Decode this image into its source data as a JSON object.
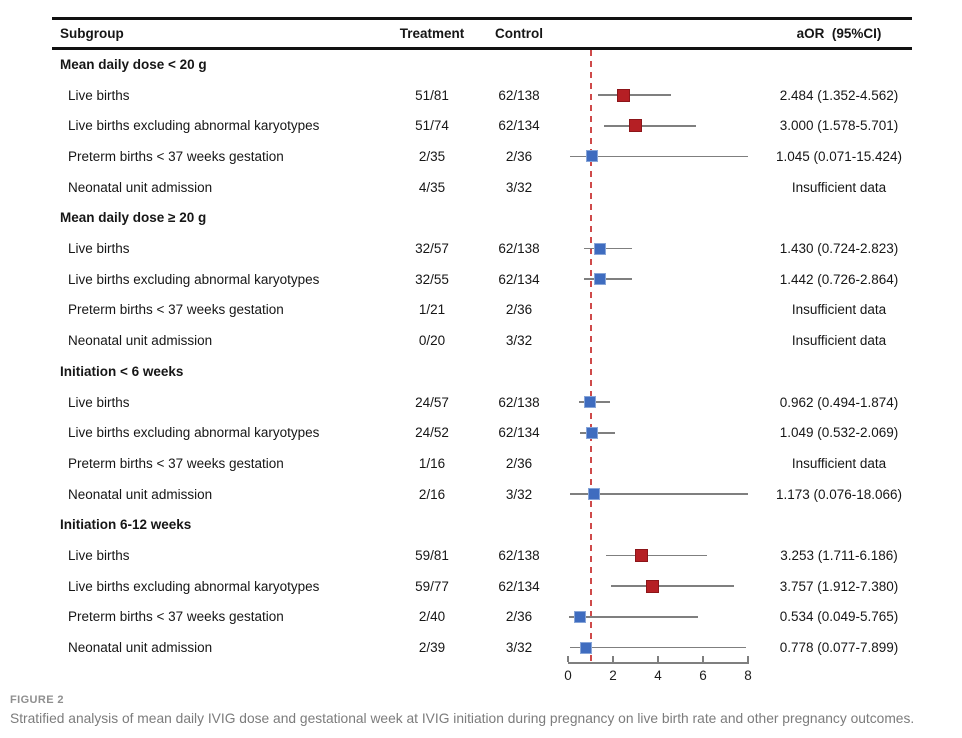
{
  "chart_data": {
    "type": "scatter",
    "subtype": "forest-plot",
    "columns": {
      "subgroup": "Subgroup",
      "treatment": "Treatment",
      "control": "Control",
      "aor": "aOR  (95%CI)"
    },
    "axis": {
      "min": 0,
      "max": 8,
      "ticks": [
        0,
        2,
        4,
        6,
        8
      ],
      "reference_line": 1,
      "grid": false
    },
    "groups": [
      {
        "label": "Mean daily dose < 20 g",
        "rows": [
          {
            "label": "Live births",
            "treatment": "51/81",
            "control": "62/138",
            "aor": 2.484,
            "ci_low": 1.352,
            "ci_high": 4.562,
            "aor_text": "2.484 (1.352-4.562)",
            "significant": true
          },
          {
            "label": "Live births excluding abnormal karyotypes",
            "treatment": "51/74",
            "control": "62/134",
            "aor": 3.0,
            "ci_low": 1.578,
            "ci_high": 5.701,
            "aor_text": "3.000 (1.578-5.701)",
            "significant": true
          },
          {
            "label": "Preterm births < 37 weeks gestation",
            "treatment": "2/35",
            "control": "2/36",
            "aor": 1.045,
            "ci_low": 0.071,
            "ci_high": 15.424,
            "aor_text": "1.045 (0.071-15.424)",
            "significant": false
          },
          {
            "label": "Neonatal unit admission",
            "treatment": "4/35",
            "control": "3/32",
            "aor": null,
            "ci_low": null,
            "ci_high": null,
            "aor_text": "Insufficient data",
            "significant": false
          }
        ]
      },
      {
        "label": "Mean daily dose ≥ 20 g",
        "rows": [
          {
            "label": "Live births",
            "treatment": "32/57",
            "control": "62/138",
            "aor": 1.43,
            "ci_low": 0.724,
            "ci_high": 2.823,
            "aor_text": "1.430 (0.724-2.823)",
            "significant": false
          },
          {
            "label": "Live births excluding abnormal karyotypes",
            "treatment": "32/55",
            "control": "62/134",
            "aor": 1.442,
            "ci_low": 0.726,
            "ci_high": 2.864,
            "aor_text": "1.442 (0.726-2.864)",
            "significant": false
          },
          {
            "label": "Preterm births < 37 weeks gestation",
            "treatment": "1/21",
            "control": "2/36",
            "aor": null,
            "ci_low": null,
            "ci_high": null,
            "aor_text": "Insufficient data",
            "significant": false
          },
          {
            "label": "Neonatal unit admission",
            "treatment": "0/20",
            "control": "3/32",
            "aor": null,
            "ci_low": null,
            "ci_high": null,
            "aor_text": "Insufficient data",
            "significant": false
          }
        ]
      },
      {
        "label": "Initiation < 6 weeks",
        "rows": [
          {
            "label": "Live births",
            "treatment": "24/57",
            "control": "62/138",
            "aor": 0.962,
            "ci_low": 0.494,
            "ci_high": 1.874,
            "aor_text": "0.962 (0.494-1.874)",
            "significant": false
          },
          {
            "label": "Live births excluding abnormal karyotypes",
            "treatment": "24/52",
            "control": "62/134",
            "aor": 1.049,
            "ci_low": 0.532,
            "ci_high": 2.069,
            "aor_text": "1.049 (0.532-2.069)",
            "significant": false
          },
          {
            "label": "Preterm births < 37 weeks gestation",
            "treatment": "1/16",
            "control": "2/36",
            "aor": null,
            "ci_low": null,
            "ci_high": null,
            "aor_text": "Insufficient data",
            "significant": false
          },
          {
            "label": "Neonatal unit admission",
            "treatment": "2/16",
            "control": "3/32",
            "aor": 1.173,
            "ci_low": 0.076,
            "ci_high": 18.066,
            "aor_text": "1.173 (0.076-18.066)",
            "significant": false
          }
        ]
      },
      {
        "label": "Initiation 6-12 weeks",
        "rows": [
          {
            "label": "Live births",
            "treatment": "59/81",
            "control": "62/138",
            "aor": 3.253,
            "ci_low": 1.711,
            "ci_high": 6.186,
            "aor_text": "3.253 (1.711-6.186)",
            "significant": true
          },
          {
            "label": "Live births excluding abnormal karyotypes",
            "treatment": "59/77",
            "control": "62/134",
            "aor": 3.757,
            "ci_low": 1.912,
            "ci_high": 7.38,
            "aor_text": "3.757 (1.912-7.380)",
            "significant": true
          },
          {
            "label": "Preterm births < 37 weeks gestation",
            "treatment": "2/40",
            "control": "2/36",
            "aor": 0.534,
            "ci_low": 0.049,
            "ci_high": 5.765,
            "aor_text": "0.534 (0.049-5.765)",
            "significant": false
          },
          {
            "label": "Neonatal unit admission",
            "treatment": "2/39",
            "control": "3/32",
            "aor": 0.778,
            "ci_low": 0.077,
            "ci_high": 7.899,
            "aor_text": "0.778 (0.077-7.899)",
            "significant": false
          }
        ]
      }
    ],
    "colors": {
      "significant_marker": "#b51f24",
      "significant_marker_border": "#8c1519",
      "nonsignificant_marker": "#3f6cbf",
      "nonsignificant_marker_border": "#87a5d8",
      "ci_line": "#7f7f7f",
      "reference_line": "#cf4a4a",
      "axis": "#7f7f7f",
      "table_rule": "#111111"
    }
  },
  "caption": {
    "label": "FIGURE 2",
    "text": "Stratified analysis of mean daily IVIG dose and gestational week at IVIG initiation during pregnancy on live birth rate and other pregnancy outcomes."
  }
}
